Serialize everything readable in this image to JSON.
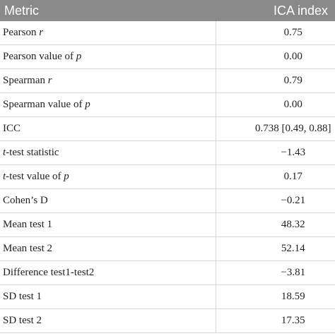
{
  "table": {
    "header": [
      "Metric",
      "ICA index"
    ],
    "rows": [
      {
        "metric": [
          {
            "text": "Pearson "
          },
          {
            "text": "r",
            "italic": true
          }
        ],
        "value": "0.75"
      },
      {
        "metric": [
          {
            "text": "Pearson value of "
          },
          {
            "text": "p",
            "italic": true
          }
        ],
        "value": "0.00"
      },
      {
        "metric": [
          {
            "text": "Spearman "
          },
          {
            "text": "r",
            "italic": true
          }
        ],
        "value": "0.79"
      },
      {
        "metric": [
          {
            "text": "Spearman value of "
          },
          {
            "text": "p",
            "italic": true
          }
        ],
        "value": "0.00"
      },
      {
        "metric": [
          {
            "text": "ICC"
          }
        ],
        "value": "0.738 [0.49, 0.88]"
      },
      {
        "metric": [
          {
            "text": "t",
            "italic": true
          },
          {
            "text": "-test statistic"
          }
        ],
        "value": "−1.43"
      },
      {
        "metric": [
          {
            "text": "t",
            "italic": true
          },
          {
            "text": "-test value of "
          },
          {
            "text": "p",
            "italic": true
          }
        ],
        "value": "0.17"
      },
      {
        "metric": [
          {
            "text": "Cohen’s D"
          }
        ],
        "value": "−0.21"
      },
      {
        "metric": [
          {
            "text": "Mean test 1"
          }
        ],
        "value": "48.32"
      },
      {
        "metric": [
          {
            "text": "Mean test 2"
          }
        ],
        "value": "52.14"
      },
      {
        "metric": [
          {
            "text": "Difference test1-test2"
          }
        ],
        "value": "−3.81"
      },
      {
        "metric": [
          {
            "text": "SD test 1"
          }
        ],
        "value": "18.59"
      },
      {
        "metric": [
          {
            "text": "SD test 2"
          }
        ],
        "value": "17.35"
      }
    ]
  }
}
